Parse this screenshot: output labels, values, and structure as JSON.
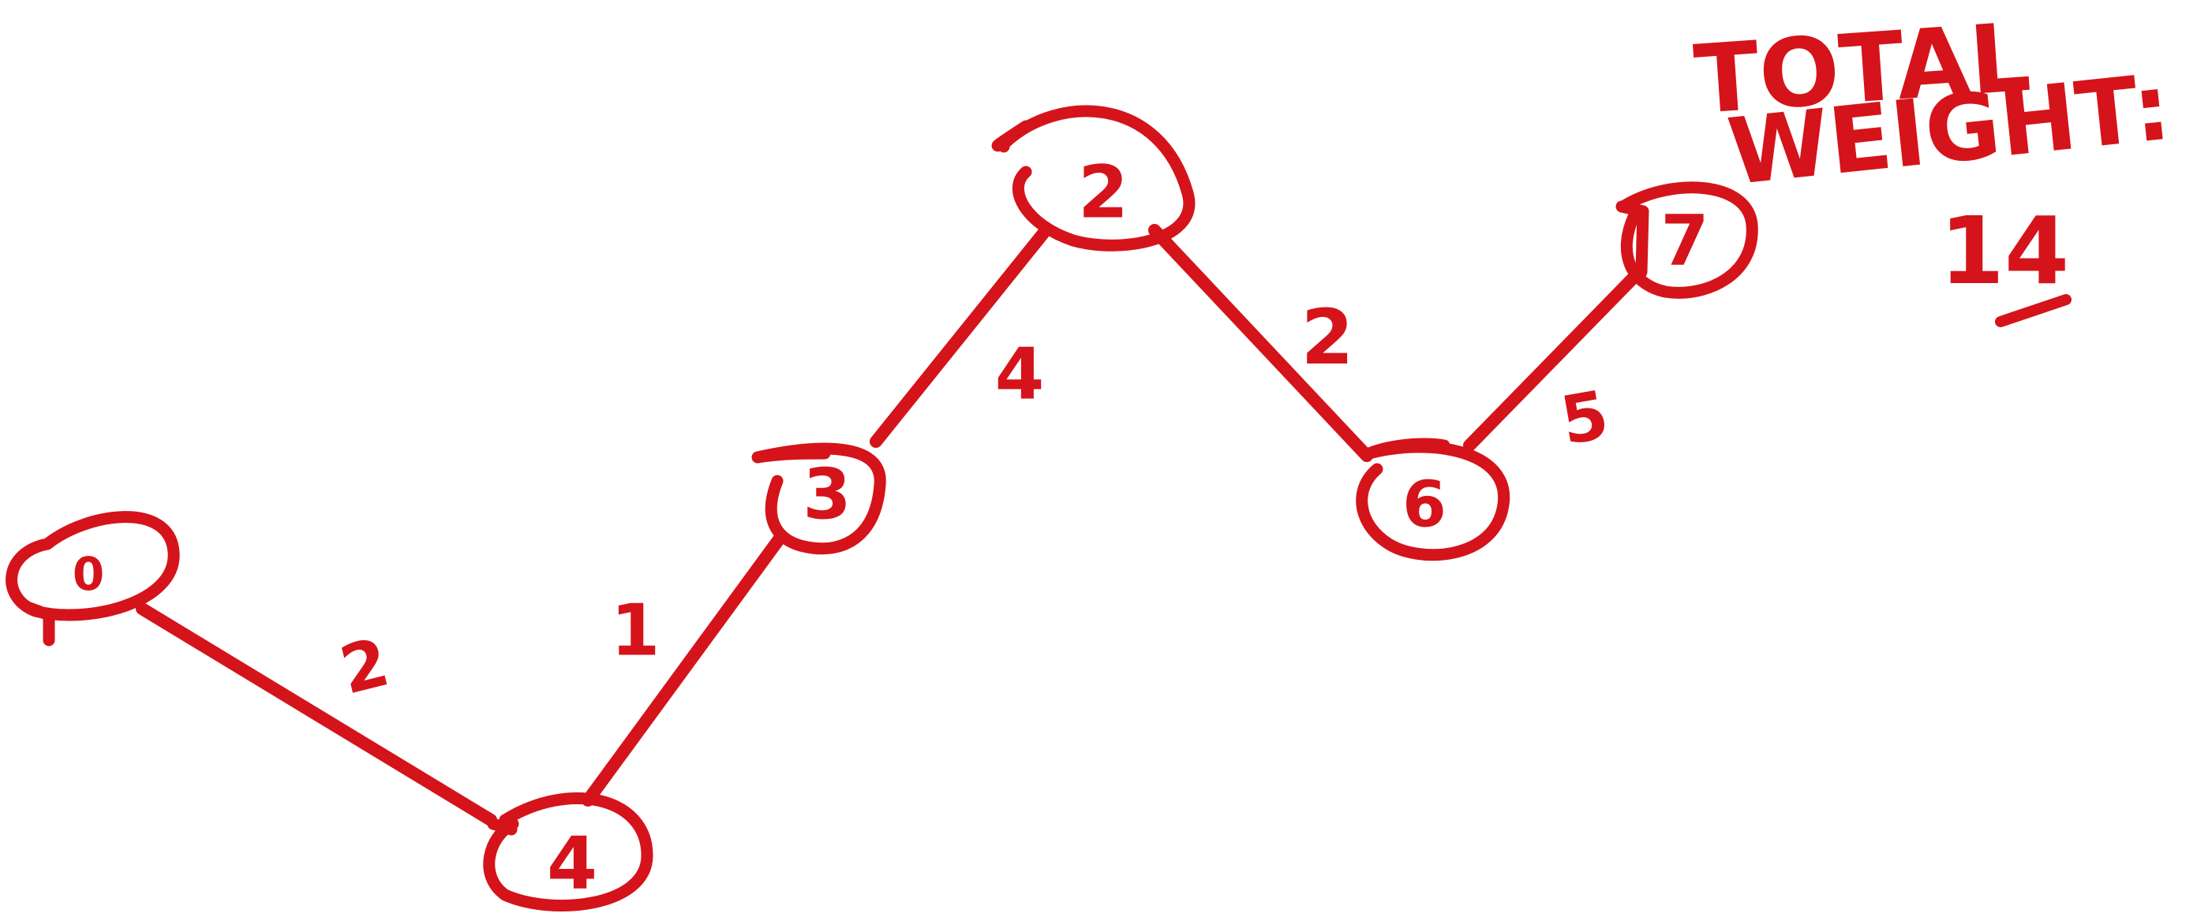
{
  "diagram": {
    "ink_color": "#d4141a",
    "nodes": [
      {
        "id": "0",
        "label": "0"
      },
      {
        "id": "2",
        "label": "2"
      },
      {
        "id": "3",
        "label": "3"
      },
      {
        "id": "4",
        "label": "4"
      },
      {
        "id": "6",
        "label": "6"
      },
      {
        "id": "7",
        "label": "7"
      }
    ],
    "edges": [
      {
        "from": "0",
        "to": "4",
        "weight": "2"
      },
      {
        "from": "4",
        "to": "3",
        "weight": "1"
      },
      {
        "from": "3",
        "to": "2",
        "weight": "4"
      },
      {
        "from": "2",
        "to": "6",
        "weight": "2"
      },
      {
        "from": "6",
        "to": "7",
        "weight": "5"
      }
    ],
    "total": {
      "line1": "TOTAL",
      "line2": "WEIGHT:",
      "value": "14"
    }
  }
}
